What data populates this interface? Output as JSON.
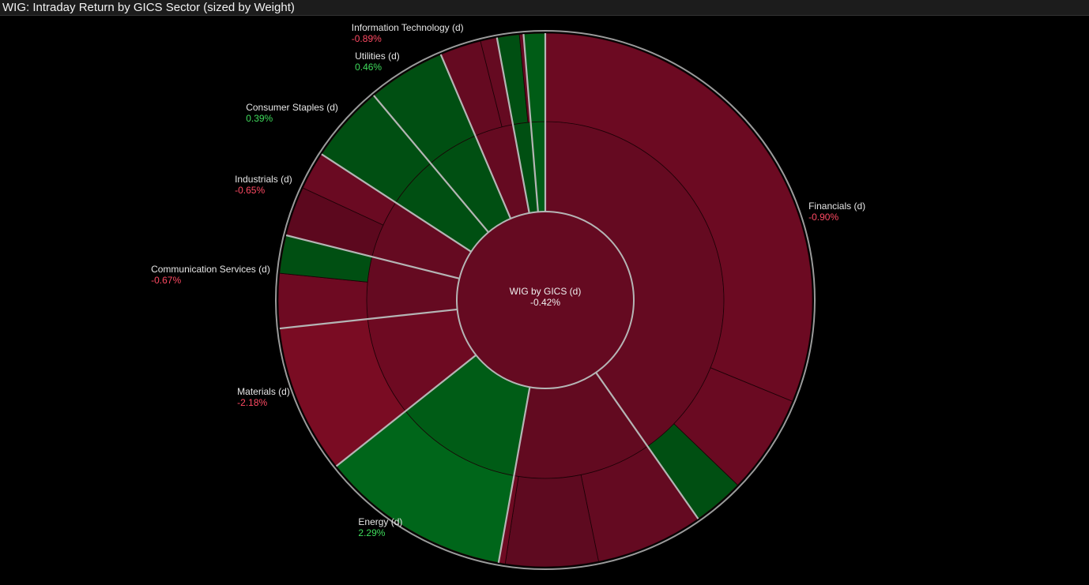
{
  "title": "WIG: Intraday Return by GICS Sector (sized by Weight)",
  "colors": {
    "negative_text": "#ff4a63",
    "positive_text": "#3fdc5c",
    "root_fill": "#650a21",
    "separator": "#b5b5b5"
  },
  "chart_data": {
    "type": "sunburst",
    "title": "WIG: Intraday Return by GICS Sector (sized by Weight)",
    "root": {
      "name": "WIG by GICS (d)",
      "return": "-0.42%"
    },
    "size_measure": "Weight (% of index)",
    "sectors": [
      {
        "name": "Financials (d)",
        "return": "-0.90%",
        "sign": "neg",
        "weight": 40.3,
        "color": "#650a21",
        "children": [
          {
            "weight": 31.2,
            "color": "#6c0a22"
          },
          {
            "weight": 6.0,
            "color": "#6a0a22"
          },
          {
            "weight": 3.1,
            "color": "#004f12"
          }
        ]
      },
      {
        "name": "",
        "return": "",
        "sign": "neg",
        "weight": 12.5,
        "color": "#620a20",
        "children": [
          {
            "weight": 6.5,
            "color": "#640a21"
          },
          {
            "weight": 5.6,
            "color": "#5e0a20"
          },
          {
            "weight": 0.4,
            "color": "#6e0a22"
          }
        ]
      },
      {
        "name": "Energy (d)",
        "return": "2.29%",
        "sign": "pos",
        "weight": 11.5,
        "color": "#005c16",
        "children": [
          {
            "weight": 11.5,
            "color": "#00661a"
          }
        ]
      },
      {
        "name": "Materials (d)",
        "return": "-2.18%",
        "sign": "neg",
        "weight": 9.0,
        "color": "#6e0a22",
        "children": [
          {
            "weight": 9.0,
            "color": "#7a0c23"
          }
        ]
      },
      {
        "name": "Communication Services (d)",
        "return": "-0.67%",
        "sign": "neg",
        "weight": 5.6,
        "color": "#650a21",
        "children": [
          {
            "weight": 3.3,
            "color": "#6e0a22"
          },
          {
            "weight": 2.3,
            "color": "#004f12"
          }
        ]
      },
      {
        "name": "Industrials (d)",
        "return": "-0.65%",
        "sign": "neg",
        "weight": 5.3,
        "color": "#650a21",
        "children": [
          {
            "weight": 3.0,
            "color": "#5c081e"
          },
          {
            "weight": 2.3,
            "color": "#6a0a22"
          }
        ]
      },
      {
        "name": "Consumer Staples (d)",
        "return": "0.39%",
        "sign": "pos",
        "weight": 4.7,
        "color": "#004f12",
        "children": [
          {
            "weight": 4.7,
            "color": "#004f12"
          }
        ]
      },
      {
        "name": "Utilities (d)",
        "return": "0.46%",
        "sign": "pos",
        "weight": 4.7,
        "color": "#004f12",
        "children": [
          {
            "weight": 4.7,
            "color": "#004f12"
          }
        ]
      },
      {
        "name": "Information Technology (d)",
        "return": "-0.89%",
        "sign": "neg",
        "weight": 3.5,
        "color": "#650a21",
        "children": [
          {
            "weight": 2.5,
            "color": "#650a21"
          },
          {
            "weight": 1.0,
            "color": "#650a21"
          }
        ]
      },
      {
        "name": "",
        "return": "",
        "sign": "pos",
        "weight": 1.6,
        "color": "#004f12",
        "children": [
          {
            "weight": 1.35,
            "color": "#004f12"
          },
          {
            "weight": 0.25,
            "color": "#650a21"
          }
        ]
      },
      {
        "name": "",
        "return": "",
        "sign": "pos",
        "weight": 1.3,
        "color": "#005c16",
        "children": [
          {
            "weight": 1.3,
            "color": "#005c16"
          }
        ]
      }
    ]
  }
}
